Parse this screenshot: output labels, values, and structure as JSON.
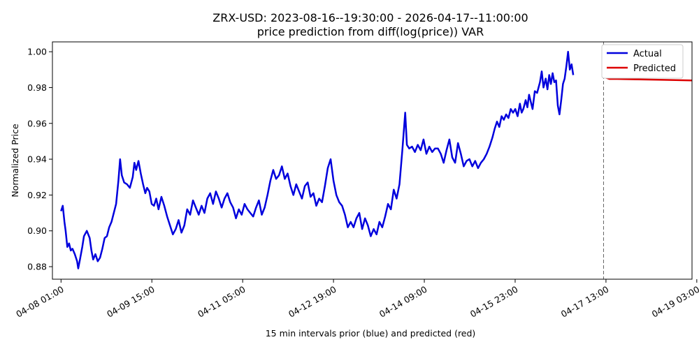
{
  "chart_data": {
    "type": "line",
    "title": "ZRX-USD: 2023-08-16--19:30:00 - 2026-04-17--11:00:00",
    "subtitle": "price prediction from diff(log(price)) VAR",
    "xlabel": "15 min intervals prior (blue) and predicted (red)",
    "ylabel": "Normalized Price",
    "xlim": [
      -0.15,
      11.0
    ],
    "ylim": [
      0.873,
      1.0055
    ],
    "grid": false,
    "legend_position": "top-right",
    "x_tick_labels": [
      "04-08 01:00",
      "04-09 15:00",
      "04-11 05:00",
      "04-12 19:00",
      "04-14 09:00",
      "04-15 23:00",
      "04-17 13:00",
      "04-19 03:00"
    ],
    "x_tick_values": [
      0,
      1.5833,
      3.1667,
      4.75,
      6.3333,
      7.9167,
      9.5,
      11.0833
    ],
    "y_ticks": [
      0.88,
      0.9,
      0.92,
      0.94,
      0.96,
      0.98,
      1.0
    ],
    "y_tick_labels": [
      "0.88",
      "0.90",
      "0.92",
      "0.94",
      "0.96",
      "0.98",
      "1.00"
    ],
    "forecast_start_x": 9.4583,
    "series": [
      {
        "name": "Actual",
        "color": "#0000dd",
        "points": [
          [
            0.0,
            0.911
          ],
          [
            0.03,
            0.914
          ],
          [
            0.06,
            0.905
          ],
          [
            0.08,
            0.9
          ],
          [
            0.11,
            0.891
          ],
          [
            0.14,
            0.893
          ],
          [
            0.17,
            0.889
          ],
          [
            0.2,
            0.89
          ],
          [
            0.24,
            0.887
          ],
          [
            0.28,
            0.883
          ],
          [
            0.3,
            0.879
          ],
          [
            0.33,
            0.884
          ],
          [
            0.37,
            0.891
          ],
          [
            0.4,
            0.897
          ],
          [
            0.45,
            0.9
          ],
          [
            0.5,
            0.896
          ],
          [
            0.53,
            0.889
          ],
          [
            0.56,
            0.884
          ],
          [
            0.6,
            0.887
          ],
          [
            0.64,
            0.883
          ],
          [
            0.68,
            0.885
          ],
          [
            0.72,
            0.89
          ],
          [
            0.76,
            0.896
          ],
          [
            0.8,
            0.897
          ],
          [
            0.84,
            0.902
          ],
          [
            0.88,
            0.905
          ],
          [
            0.92,
            0.91
          ],
          [
            0.96,
            0.915
          ],
          [
            1.0,
            0.928
          ],
          [
            1.03,
            0.94
          ],
          [
            1.06,
            0.931
          ],
          [
            1.1,
            0.927
          ],
          [
            1.15,
            0.926
          ],
          [
            1.2,
            0.924
          ],
          [
            1.25,
            0.93
          ],
          [
            1.28,
            0.938
          ],
          [
            1.31,
            0.934
          ],
          [
            1.35,
            0.939
          ],
          [
            1.39,
            0.932
          ],
          [
            1.43,
            0.926
          ],
          [
            1.47,
            0.921
          ],
          [
            1.5,
            0.924
          ],
          [
            1.54,
            0.922
          ],
          [
            1.58,
            0.915
          ],
          [
            1.62,
            0.914
          ],
          [
            1.66,
            0.918
          ],
          [
            1.7,
            0.912
          ],
          [
            1.75,
            0.919
          ],
          [
            1.8,
            0.914
          ],
          [
            1.85,
            0.908
          ],
          [
            1.9,
            0.903
          ],
          [
            1.95,
            0.898
          ],
          [
            2.0,
            0.901
          ],
          [
            2.05,
            0.906
          ],
          [
            2.1,
            0.899
          ],
          [
            2.15,
            0.903
          ],
          [
            2.2,
            0.912
          ],
          [
            2.25,
            0.909
          ],
          [
            2.3,
            0.917
          ],
          [
            2.35,
            0.913
          ],
          [
            2.4,
            0.909
          ],
          [
            2.45,
            0.914
          ],
          [
            2.5,
            0.91
          ],
          [
            2.55,
            0.918
          ],
          [
            2.6,
            0.921
          ],
          [
            2.65,
            0.915
          ],
          [
            2.7,
            0.922
          ],
          [
            2.75,
            0.918
          ],
          [
            2.8,
            0.913
          ],
          [
            2.85,
            0.918
          ],
          [
            2.9,
            0.921
          ],
          [
            2.95,
            0.916
          ],
          [
            3.0,
            0.913
          ],
          [
            3.05,
            0.907
          ],
          [
            3.1,
            0.912
          ],
          [
            3.15,
            0.909
          ],
          [
            3.2,
            0.915
          ],
          [
            3.25,
            0.912
          ],
          [
            3.3,
            0.91
          ],
          [
            3.35,
            0.908
          ],
          [
            3.4,
            0.913
          ],
          [
            3.45,
            0.917
          ],
          [
            3.5,
            0.909
          ],
          [
            3.55,
            0.913
          ],
          [
            3.6,
            0.92
          ],
          [
            3.65,
            0.928
          ],
          [
            3.7,
            0.934
          ],
          [
            3.75,
            0.929
          ],
          [
            3.8,
            0.931
          ],
          [
            3.85,
            0.936
          ],
          [
            3.9,
            0.929
          ],
          [
            3.95,
            0.932
          ],
          [
            4.0,
            0.925
          ],
          [
            4.05,
            0.92
          ],
          [
            4.1,
            0.926
          ],
          [
            4.15,
            0.922
          ],
          [
            4.2,
            0.918
          ],
          [
            4.25,
            0.925
          ],
          [
            4.3,
            0.927
          ],
          [
            4.35,
            0.919
          ],
          [
            4.4,
            0.921
          ],
          [
            4.45,
            0.914
          ],
          [
            4.5,
            0.918
          ],
          [
            4.55,
            0.916
          ],
          [
            4.6,
            0.925
          ],
          [
            4.65,
            0.935
          ],
          [
            4.7,
            0.94
          ],
          [
            4.75,
            0.928
          ],
          [
            4.8,
            0.92
          ],
          [
            4.85,
            0.916
          ],
          [
            4.9,
            0.914
          ],
          [
            4.95,
            0.909
          ],
          [
            5.0,
            0.902
          ],
          [
            5.05,
            0.905
          ],
          [
            5.1,
            0.902
          ],
          [
            5.15,
            0.907
          ],
          [
            5.2,
            0.91
          ],
          [
            5.25,
            0.901
          ],
          [
            5.3,
            0.907
          ],
          [
            5.35,
            0.903
          ],
          [
            5.4,
            0.897
          ],
          [
            5.45,
            0.901
          ],
          [
            5.5,
            0.898
          ],
          [
            5.55,
            0.905
          ],
          [
            5.6,
            0.902
          ],
          [
            5.65,
            0.908
          ],
          [
            5.7,
            0.915
          ],
          [
            5.75,
            0.912
          ],
          [
            5.8,
            0.923
          ],
          [
            5.85,
            0.918
          ],
          [
            5.9,
            0.926
          ],
          [
            5.95,
            0.945
          ],
          [
            6.0,
            0.966
          ],
          [
            6.03,
            0.948
          ],
          [
            6.07,
            0.946
          ],
          [
            6.12,
            0.947
          ],
          [
            6.17,
            0.944
          ],
          [
            6.22,
            0.948
          ],
          [
            6.27,
            0.945
          ],
          [
            6.32,
            0.951
          ],
          [
            6.37,
            0.943
          ],
          [
            6.42,
            0.947
          ],
          [
            6.47,
            0.944
          ],
          [
            6.52,
            0.946
          ],
          [
            6.57,
            0.946
          ],
          [
            6.62,
            0.943
          ],
          [
            6.67,
            0.938
          ],
          [
            6.72,
            0.945
          ],
          [
            6.77,
            0.951
          ],
          [
            6.82,
            0.941
          ],
          [
            6.87,
            0.938
          ],
          [
            6.92,
            0.949
          ],
          [
            6.97,
            0.943
          ],
          [
            7.02,
            0.936
          ],
          [
            7.07,
            0.939
          ],
          [
            7.12,
            0.94
          ],
          [
            7.17,
            0.936
          ],
          [
            7.22,
            0.939
          ],
          [
            7.27,
            0.935
          ],
          [
            7.32,
            0.938
          ],
          [
            7.37,
            0.94
          ],
          [
            7.42,
            0.943
          ],
          [
            7.47,
            0.947
          ],
          [
            7.52,
            0.952
          ],
          [
            7.56,
            0.957
          ],
          [
            7.6,
            0.961
          ],
          [
            7.64,
            0.958
          ],
          [
            7.68,
            0.964
          ],
          [
            7.72,
            0.962
          ],
          [
            7.76,
            0.965
          ],
          [
            7.8,
            0.963
          ],
          [
            7.84,
            0.968
          ],
          [
            7.88,
            0.966
          ],
          [
            7.92,
            0.968
          ],
          [
            7.96,
            0.964
          ],
          [
            8.0,
            0.971
          ],
          [
            8.03,
            0.966
          ],
          [
            8.06,
            0.968
          ],
          [
            8.1,
            0.973
          ],
          [
            8.13,
            0.969
          ],
          [
            8.16,
            0.976
          ],
          [
            8.19,
            0.972
          ],
          [
            8.22,
            0.968
          ],
          [
            8.26,
            0.978
          ],
          [
            8.3,
            0.977
          ],
          [
            8.35,
            0.983
          ],
          [
            8.38,
            0.989
          ],
          [
            8.41,
            0.98
          ],
          [
            8.45,
            0.985
          ],
          [
            8.48,
            0.979
          ],
          [
            8.51,
            0.987
          ],
          [
            8.54,
            0.982
          ],
          [
            8.57,
            0.988
          ],
          [
            8.6,
            0.983
          ],
          [
            8.63,
            0.984
          ],
          [
            8.66,
            0.97
          ],
          [
            8.69,
            0.965
          ],
          [
            8.72,
            0.973
          ],
          [
            8.75,
            0.982
          ],
          [
            8.78,
            0.985
          ],
          [
            8.81,
            0.992
          ],
          [
            8.84,
            1.0
          ],
          [
            8.87,
            0.99
          ],
          [
            8.9,
            0.993
          ],
          [
            8.93,
            0.987
          ]
        ]
      },
      {
        "name": "Predicted",
        "color": "#dd0000",
        "points": [
          [
            9.46,
            0.9875
          ],
          [
            9.5,
            0.9855
          ],
          [
            9.56,
            0.9848
          ],
          [
            9.7,
            0.9848
          ],
          [
            10.0,
            0.9846
          ],
          [
            10.5,
            0.9843
          ],
          [
            11.0,
            0.984
          ]
        ]
      }
    ]
  }
}
